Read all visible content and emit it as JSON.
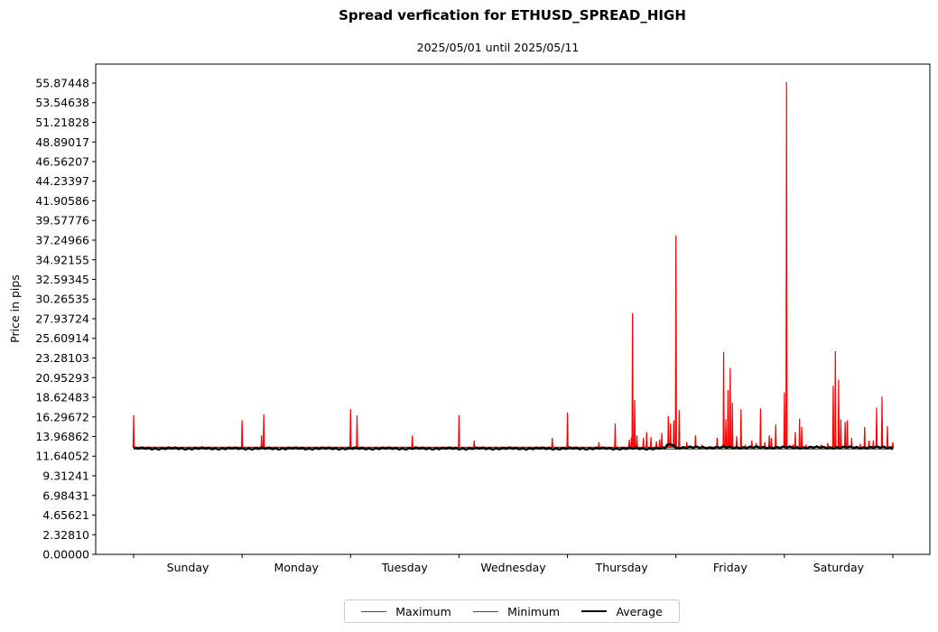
{
  "chart_data": {
    "type": "line",
    "title": "Spread verfication for ETHUSD_SPREAD_HIGH",
    "subtitle": "2025/05/01 until 2025/05/11",
    "ylabel": "Price in pips",
    "xlabel": "",
    "ylim": [
      0,
      58.2
    ],
    "yticks": [
      "0.00000",
      "2.32810",
      "4.65621",
      "6.98431",
      "9.31241",
      "11.64052",
      "13.96862",
      "16.29672",
      "18.62483",
      "20.95293",
      "23.28103",
      "25.60914",
      "27.93724",
      "30.26535",
      "32.59345",
      "34.92155",
      "37.24966",
      "39.57776",
      "41.90586",
      "44.23397",
      "46.56207",
      "48.89017",
      "51.21828",
      "53.54638",
      "55.87448"
    ],
    "categories": [
      "Sunday",
      "Monday",
      "Tuesday",
      "Wednesday",
      "Thursday",
      "Friday",
      "Saturday"
    ],
    "xlim": [
      0,
      7
    ],
    "grid": false,
    "legend_position": "bottom-center",
    "series": [
      {
        "name": "Maximum",
        "color": "#ff0000",
        "spikes": [
          [
            0.0,
            16.5
          ],
          [
            1.0,
            15.9
          ],
          [
            1.18,
            14.1
          ],
          [
            1.2,
            16.6
          ],
          [
            2.0,
            17.2
          ],
          [
            2.06,
            16.5
          ],
          [
            2.57,
            14.1
          ],
          [
            3.0,
            16.5
          ],
          [
            3.14,
            13.5
          ],
          [
            3.86,
            13.8
          ],
          [
            4.0,
            16.8
          ],
          [
            4.29,
            13.3
          ],
          [
            4.44,
            15.5
          ],
          [
            4.57,
            13.6
          ],
          [
            4.59,
            13.9
          ],
          [
            4.6,
            28.6
          ],
          [
            4.62,
            18.3
          ],
          [
            4.64,
            14.1
          ],
          [
            4.7,
            13.8
          ],
          [
            4.73,
            14.5
          ],
          [
            4.77,
            13.9
          ],
          [
            4.82,
            13.4
          ],
          [
            4.85,
            13.6
          ],
          [
            4.87,
            14.4
          ],
          [
            4.93,
            16.4
          ],
          [
            4.95,
            15.5
          ],
          [
            4.98,
            15.9
          ],
          [
            5.0,
            37.8
          ],
          [
            5.03,
            17.1
          ],
          [
            5.1,
            13.3
          ],
          [
            5.18,
            14.1
          ],
          [
            5.24,
            13.0
          ],
          [
            5.38,
            13.8
          ],
          [
            5.44,
            24.0
          ],
          [
            5.46,
            16.0
          ],
          [
            5.48,
            19.5
          ],
          [
            5.5,
            22.1
          ],
          [
            5.52,
            18.0
          ],
          [
            5.56,
            14.0
          ],
          [
            5.6,
            17.2
          ],
          [
            5.64,
            13.0
          ],
          [
            5.7,
            13.5
          ],
          [
            5.74,
            13.2
          ],
          [
            5.78,
            17.3
          ],
          [
            5.82,
            13.3
          ],
          [
            5.86,
            14.1
          ],
          [
            5.88,
            13.8
          ],
          [
            5.92,
            15.4
          ],
          [
            6.02,
            13.5
          ],
          [
            6.0,
            19.2
          ],
          [
            6.02,
            56.0
          ],
          [
            6.08,
            13.0
          ],
          [
            6.1,
            14.5
          ],
          [
            6.14,
            16.1
          ],
          [
            6.16,
            15.1
          ],
          [
            6.2,
            13.0
          ],
          [
            6.34,
            13.0
          ],
          [
            6.4,
            13.2
          ],
          [
            6.45,
            20.0
          ],
          [
            6.47,
            24.1
          ],
          [
            6.5,
            20.7
          ],
          [
            6.52,
            16.0
          ],
          [
            6.56,
            15.7
          ],
          [
            6.58,
            15.9
          ],
          [
            6.62,
            13.8
          ],
          [
            6.7,
            13.1
          ],
          [
            6.74,
            15.1
          ],
          [
            6.78,
            13.5
          ],
          [
            6.82,
            13.5
          ],
          [
            6.85,
            17.4
          ],
          [
            6.9,
            18.7
          ],
          [
            6.95,
            15.2
          ],
          [
            7.0,
            13.3
          ]
        ]
      },
      {
        "name": "Minimum",
        "color": "#008000",
        "baseline": 12.5
      },
      {
        "name": "Average",
        "color": "#000000",
        "baseline": 12.55
      }
    ]
  }
}
